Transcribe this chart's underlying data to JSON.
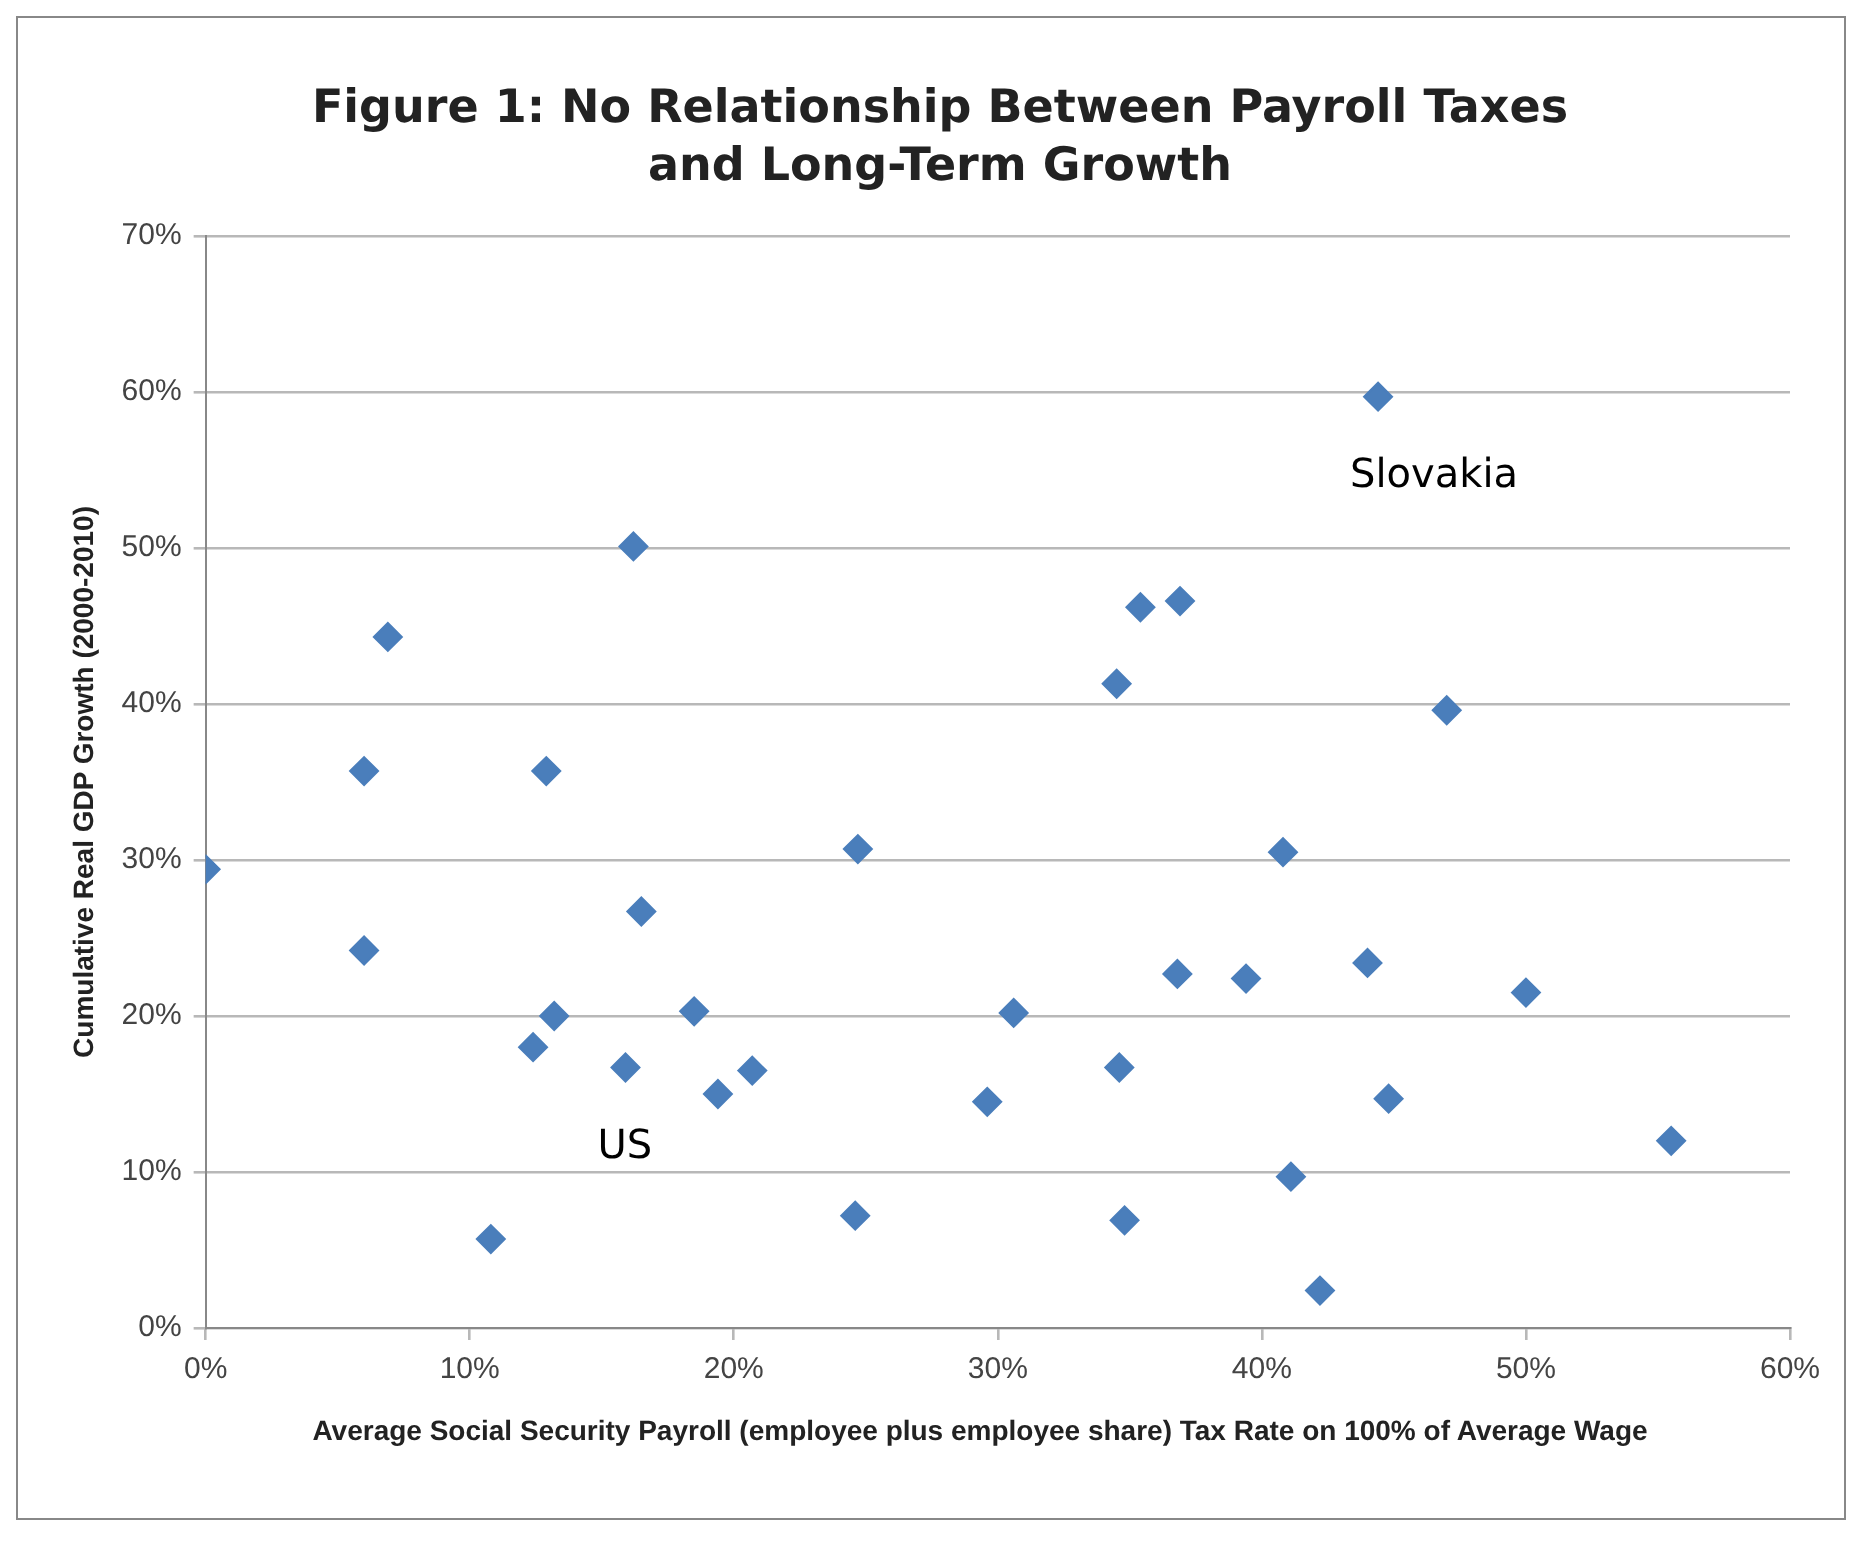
{
  "chart_data": {
    "type": "scatter",
    "title": "Figure 1: No Relationship Between Payroll Taxes and Long-Term Growth",
    "xlabel": "Average Social Security Payroll (employee plus employee share) Tax Rate on 100% of Average Wage",
    "ylabel": "Cumulative Real GDP Growth (2000-2010)",
    "series": [
      {
        "color": "#4a7ebb",
        "x": [
          0,
          6.0,
          6.9,
          6.0,
          12.9,
          16.2,
          24.7,
          16.5,
          10.8,
          12.4,
          13.2,
          15.9,
          18.5,
          19.4,
          20.7,
          24.6,
          29.6,
          30.6,
          44.4,
          35.4,
          36.9,
          34.5,
          47.0,
          40.8,
          36.8,
          39.4,
          44.0,
          50.0,
          34.6,
          44.8,
          55.5,
          41.1,
          34.8,
          42.2
        ],
        "values": [
          29.4,
          35.7,
          44.3,
          24.2,
          35.7,
          50.1,
          30.7,
          26.7,
          5.7,
          18.0,
          20.0,
          16.7,
          20.3,
          15.0,
          16.5,
          7.2,
          14.5,
          20.2,
          59.7,
          46.2,
          46.6,
          41.3,
          39.6,
          30.5,
          22.7,
          22.4,
          23.4,
          21.5,
          16.7,
          14.7,
          12.0,
          9.7,
          6.9,
          2.4
        ]
      }
    ],
    "xlim": [
      0,
      60
    ],
    "xticks": [
      {
        "value": 0,
        "label": "0%"
      },
      {
        "value": 10,
        "label": "10%"
      },
      {
        "value": 20,
        "label": "20%"
      },
      {
        "value": 30,
        "label": "30%"
      },
      {
        "value": 40,
        "label": "40%"
      },
      {
        "value": 50,
        "label": "50%"
      },
      {
        "value": 60,
        "label": "60%"
      }
    ],
    "ylim": [
      0,
      70
    ],
    "yticks": [
      {
        "value": 0,
        "label": "0%"
      },
      {
        "value": 10,
        "label": "10%"
      },
      {
        "value": 20,
        "label": "20%"
      },
      {
        "value": 30,
        "label": "30%"
      },
      {
        "value": 40,
        "label": "40%"
      },
      {
        "value": 50,
        "label": "50%"
      },
      {
        "value": 60,
        "label": "60%"
      },
      {
        "value": 70,
        "label": "70%"
      }
    ],
    "annotations": [
      {
        "text": "US",
        "x": 15.9,
        "y": 16.7
      },
      {
        "text": "Slovakia",
        "x": 44.4,
        "y": 59.7
      }
    ],
    "grid": "y",
    "legend": false,
    "marker": "diamond"
  }
}
